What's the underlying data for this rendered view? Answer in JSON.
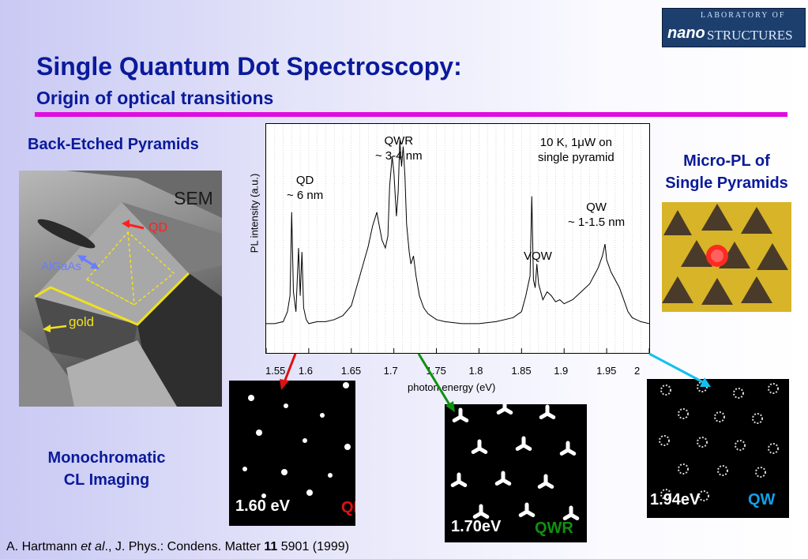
{
  "slide": {
    "title": "Single Quantum Dot Spectroscopy:",
    "subtitle": "Origin of optical transitions",
    "accent_color": "#e00ce0",
    "title_color": "#0a1a9a"
  },
  "logo": {
    "line1": "LABORATORY OF",
    "nano": "nano",
    "structures": "STRUCTURES"
  },
  "left_panel": {
    "heading": "Back-Etched Pyramids",
    "sem_label": "SEM",
    "qd_label": "QD",
    "algaas_label": "AlGaAs",
    "gold_label": "gold"
  },
  "right_panel": {
    "heading_line1": "Micro-PL of",
    "heading_line2": "Single Pyramids"
  },
  "cl_panel": {
    "heading_line1": "Monochromatic",
    "heading_line2": "CL Imaging",
    "images": [
      {
        "energy": "1.60 eV",
        "tag": "QD",
        "tag_color": "#e01010"
      },
      {
        "energy": "1.70eV",
        "tag": "QWR",
        "tag_color": "#109010"
      },
      {
        "energy": "1.94eV",
        "tag": "QW",
        "tag_color": "#12a0e6"
      }
    ]
  },
  "chart_data": {
    "type": "line",
    "xlabel": "photon energy (eV)",
    "ylabel": "PL intensity (a.u.)",
    "xlim": [
      1.55,
      2.0
    ],
    "x_ticks": [
      "1.55",
      "1.6",
      "1.65",
      "1.7",
      "1.75",
      "1.8",
      "1.85",
      "1.9",
      "1.95",
      "2"
    ],
    "grid": "vertical dotted",
    "annotations": {
      "condition_line1": "10 K, 1μW on",
      "condition_line2": "single pyramid",
      "qd_line1": "QD",
      "qd_line2": "~ 6 nm",
      "qwr_line1": "QWR",
      "qwr_line2": "~ 3-4 nm",
      "qw_line1": "QW",
      "qw_line2": "~ 1-1.5 nm",
      "vqw": "VQW"
    },
    "series": [
      {
        "x": [
          1.55,
          1.56,
          1.57,
          1.575,
          1.578,
          1.58,
          1.582,
          1.585,
          1.588,
          1.59,
          1.592,
          1.594,
          1.597,
          1.6,
          1.61,
          1.62,
          1.63,
          1.64,
          1.65,
          1.66,
          1.67,
          1.675,
          1.68,
          1.683,
          1.686,
          1.69,
          1.693,
          1.695,
          1.698,
          1.7,
          1.703,
          1.705,
          1.707,
          1.709,
          1.711,
          1.713,
          1.715,
          1.718,
          1.72,
          1.723,
          1.726,
          1.73,
          1.735,
          1.74,
          1.75,
          1.76,
          1.78,
          1.8,
          1.82,
          1.84,
          1.85,
          1.855,
          1.86,
          1.862,
          1.864,
          1.866,
          1.868,
          1.87,
          1.875,
          1.88,
          1.885,
          1.89,
          1.895,
          1.9,
          1.91,
          1.92,
          1.93,
          1.935,
          1.94,
          1.945,
          1.948,
          1.95,
          1.955,
          1.96,
          1.965,
          1.97,
          1.975,
          1.98,
          1.99,
          2.0
        ],
        "y": [
          0.06,
          0.06,
          0.07,
          0.12,
          0.2,
          0.62,
          0.22,
          0.12,
          0.44,
          0.2,
          0.42,
          0.14,
          0.08,
          0.06,
          0.07,
          0.07,
          0.08,
          0.1,
          0.15,
          0.3,
          0.45,
          0.55,
          0.62,
          0.55,
          0.48,
          0.44,
          0.5,
          0.75,
          0.9,
          0.82,
          0.6,
          0.72,
          0.98,
          0.85,
          0.95,
          0.8,
          0.56,
          0.42,
          0.36,
          0.4,
          0.3,
          0.2,
          0.14,
          0.11,
          0.08,
          0.07,
          0.06,
          0.06,
          0.07,
          0.09,
          0.12,
          0.2,
          0.3,
          0.7,
          0.28,
          0.24,
          0.36,
          0.26,
          0.18,
          0.22,
          0.2,
          0.17,
          0.18,
          0.16,
          0.18,
          0.22,
          0.26,
          0.3,
          0.34,
          0.4,
          0.46,
          0.38,
          0.32,
          0.28,
          0.24,
          0.18,
          0.12,
          0.09,
          0.07,
          0.06
        ]
      }
    ]
  },
  "citation": {
    "author": "A. Hartmann ",
    "etal": "et al",
    "journal": "., J. Phys.: Condens. Matter ",
    "volume": "11",
    "rest": " 5901 (1999)"
  }
}
